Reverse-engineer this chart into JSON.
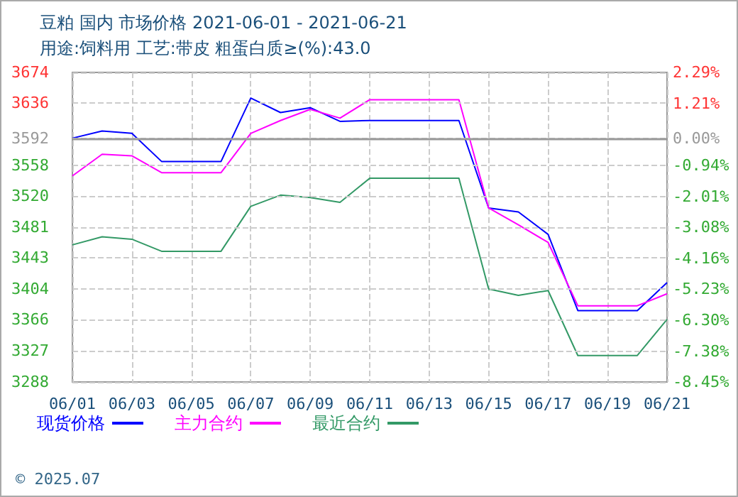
{
  "chart_data": {
    "type": "line",
    "title": "豆粕 国内 市场价格 2021-06-01 - 2021-06-21",
    "subtitle": "用途:饲料用 工艺:带皮 粗蛋白质≥(%):43.0",
    "categories": [
      "06/01",
      null,
      "06/03",
      null,
      "06/05",
      null,
      "06/07",
      null,
      "06/09",
      null,
      "06/11",
      null,
      "06/13",
      null,
      "06/15",
      null,
      "06/17",
      null,
      "06/19",
      null,
      "06/21"
    ],
    "series": [
      {
        "name": "现货价格",
        "color": "#0000ff",
        "values": [
          3592,
          3601,
          3598,
          3563,
          3563,
          3563,
          3642,
          3624,
          3630,
          3613,
          3614,
          3614,
          3614,
          3614,
          3505,
          3500,
          3472,
          3377,
          3377,
          3377,
          3412
        ]
      },
      {
        "name": "主力合约",
        "color": "#ff00ff",
        "values": [
          3545,
          3572,
          3570,
          3549,
          3549,
          3549,
          3598,
          3614,
          3628,
          3617,
          3640,
          3640,
          3640,
          3640,
          3505,
          3484,
          3462,
          3383,
          3383,
          3383,
          3398
        ]
      },
      {
        "name": "最近合约",
        "color": "#339966",
        "values": [
          3459,
          3469,
          3466,
          3451,
          3451,
          3451,
          3507,
          3521,
          3518,
          3512,
          3542,
          3542,
          3542,
          3542,
          3404,
          3396,
          3402,
          3321,
          3321,
          3321,
          3366
        ]
      }
    ],
    "ylim": [
      3288,
      3674
    ],
    "yticks": [
      3288,
      3327,
      3366,
      3404,
      3443,
      3481,
      3520,
      3558,
      3592,
      3636,
      3674
    ],
    "y2lim": [
      -8.45,
      2.29
    ],
    "y2ticks": [
      {
        "value": -8.45,
        "label": "-8.45%"
      },
      {
        "value": -7.38,
        "label": "-7.38%"
      },
      {
        "value": -6.3,
        "label": "-6.30%"
      },
      {
        "value": -5.23,
        "label": "-5.23%"
      },
      {
        "value": -4.16,
        "label": "-4.16%"
      },
      {
        "value": -3.08,
        "label": "-3.08%"
      },
      {
        "value": -2.01,
        "label": "-2.01%"
      },
      {
        "value": -0.94,
        "label": "-0.94%"
      },
      {
        "value": 0,
        "label": "0.00%"
      },
      {
        "value": 1.21,
        "label": "1.21%"
      },
      {
        "value": 2.29,
        "label": "2.29%"
      }
    ],
    "ref_lines": [
      {
        "axis": "y",
        "value": 3592,
        "color": "#999999"
      }
    ],
    "grid": true,
    "legend": "bottom",
    "marker": "none",
    "line_style": "solid",
    "annotations": [
      "© 2025.07"
    ]
  }
}
